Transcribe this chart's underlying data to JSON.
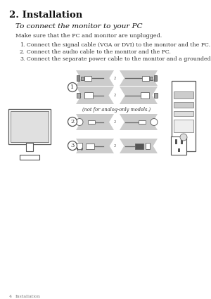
{
  "background_color": "#ffffff",
  "title": "2. Installation",
  "subtitle": "To connect the monitor to your PC",
  "make_sure": "Make sure that the PC and monitor are unplugged.",
  "instructions": [
    "Connect the signal cable (VGA or DVI) to the monitor and the PC.",
    "Connect the audio cable to the monitor and the PC.",
    "Connect the separate power cable to the monitor and a grounded outlet."
  ],
  "footer_num": "4",
  "footer_text": "Installation",
  "title_fontsize": 9.5,
  "subtitle_fontsize": 7.5,
  "body_fontsize": 5.8,
  "list_fontsize": 5.6,
  "footer_fontsize": 4.5,
  "note_fontsize": 4.8,
  "bg_gray": "#cccccc",
  "line_color": "#555555",
  "connector_color": "#666666",
  "text_color": "#333333",
  "title_color": "#111111",
  "gray_light": "#bbbbbb",
  "circle_label_fontsize": 6.0
}
